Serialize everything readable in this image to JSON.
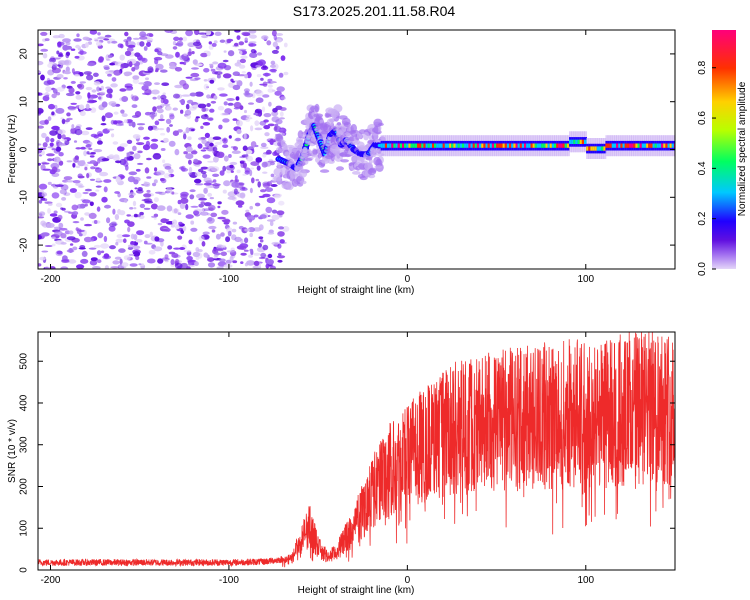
{
  "figure_title": "S173.2025.201.11.58.R04",
  "colors": {
    "spectrogram_palette": [
      "#ffffff",
      "#e4d6f8",
      "#a270f0",
      "#6010e0",
      "#2000ff",
      "#00c8ff",
      "#00ff60",
      "#b8ff00",
      "#ffd000",
      "#ff3000",
      "#ff007a"
    ],
    "snr_line": "#ee2a2a",
    "frame": "#000000"
  },
  "chart_data": [
    {
      "type": "heatmap",
      "title": "",
      "xlabel": "Height of straight line (km)",
      "ylabel": "Frequency (Hz)",
      "xlim": [
        -207,
        150
      ],
      "ylim": [
        -25,
        25
      ],
      "x_ticks": [
        -200,
        -100,
        0,
        100
      ],
      "y_ticks": [
        20,
        10,
        0,
        -10,
        -20
      ],
      "colorbar": {
        "label": "Normalized spectral amplitude",
        "range": [
          0,
          0.95
        ],
        "ticks": [
          0.0,
          0.2,
          0.4,
          0.6,
          0.8
        ]
      },
      "features": {
        "noise_region_x": [
          -207,
          -72
        ],
        "transition_region_x": [
          -72,
          -15
        ],
        "carrier_region_x": [
          -15,
          150
        ],
        "carrier_frequency_hz": 0.8
      }
    },
    {
      "type": "line",
      "title": "",
      "xlabel": "Height of straight line (km)",
      "ylabel": "SNR (10 * v/v)",
      "xlim": [
        -207,
        150
      ],
      "ylim": [
        0,
        570
      ],
      "x_ticks": [
        -200,
        -100,
        0,
        100
      ],
      "y_ticks": [
        0,
        100,
        200,
        300,
        400,
        500
      ],
      "series": [
        {
          "x": [
            -207,
            -180,
            -150,
            -120,
            -100,
            -80,
            -65,
            -55,
            -50,
            -45,
            -40,
            -35,
            -30,
            -25,
            -20,
            -15,
            -10,
            0,
            10,
            20,
            30,
            40,
            50,
            60,
            70,
            80,
            90,
            100,
            110,
            120,
            130,
            140,
            150
          ],
          "y": [
            18,
            18,
            18,
            18,
            18,
            20,
            28,
            120,
            60,
            35,
            45,
            80,
            110,
            160,
            200,
            230,
            270,
            300,
            330,
            355,
            375,
            385,
            390,
            395,
            400,
            405,
            410,
            410,
            415,
            420,
            425,
            430,
            430
          ]
        }
      ]
    }
  ]
}
